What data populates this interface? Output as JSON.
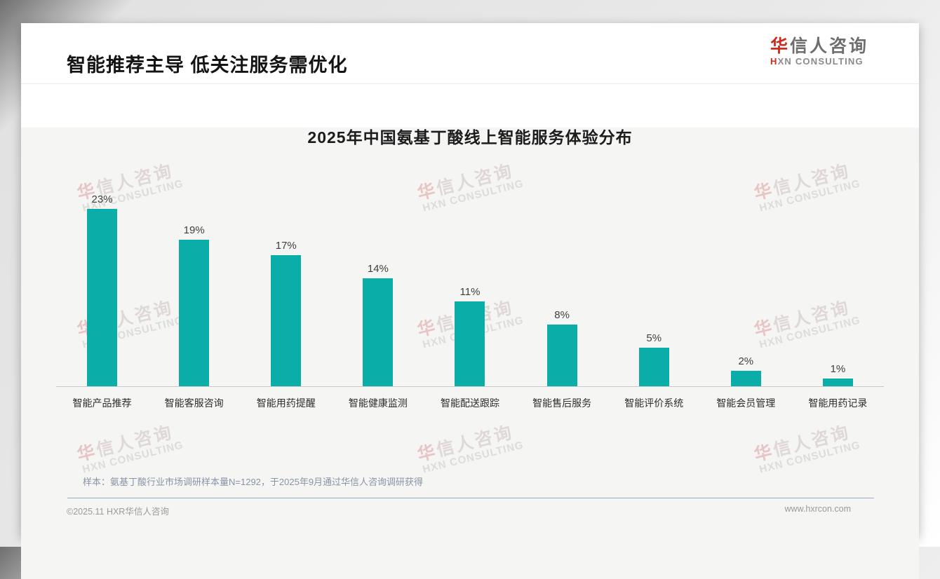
{
  "header": {
    "title": "智能推荐主导 低关注服务需优化"
  },
  "logo": {
    "cn_first": "华",
    "cn_rest": "信人咨询",
    "en_first": "H",
    "en_rest": "XN CONSULTING"
  },
  "watermark": {
    "line1_first": "华",
    "line1_rest": "信人咨询",
    "line2": "HXN CONSULTING"
  },
  "chart_data": {
    "type": "bar",
    "title": "2025年中国氨基丁酸线上智能服务体验分布",
    "categories": [
      "智能产品推荐",
      "智能客服咨询",
      "智能用药提醒",
      "智能健康监测",
      "智能配送跟踪",
      "智能售后服务",
      "智能评价系统",
      "智能会员管理",
      "智能用药记录"
    ],
    "values": [
      23,
      19,
      17,
      14,
      11,
      8,
      5,
      2,
      1
    ],
    "unit": "%",
    "bar_color": "#0aada7",
    "xlabel": "",
    "ylabel": "",
    "ylim": [
      0,
      25
    ],
    "grid": false,
    "legend": "none",
    "value_labels": true
  },
  "note": {
    "text": "样本：氨基丁酸行业市场调研样本量N=1292，于2025年9月通过华信人咨询调研获得"
  },
  "footer": {
    "left": "©2025.11 HXR华信人咨询",
    "right": "www.hxrcon.com"
  }
}
